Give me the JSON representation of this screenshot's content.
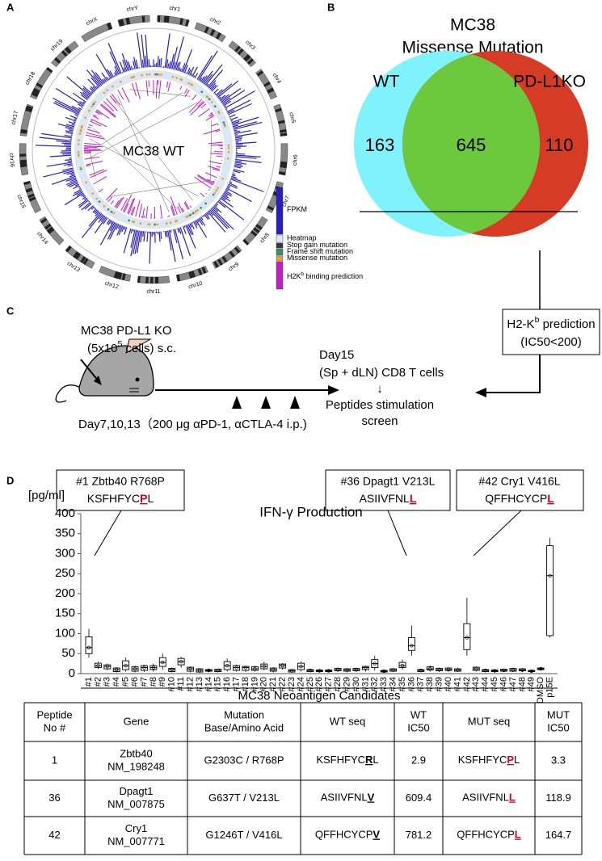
{
  "panel_labels": [
    "A",
    "B",
    "C",
    "D"
  ],
  "panel_a": {
    "center_label": "MC38 WT",
    "chromosomes": [
      "chr1",
      "chr2",
      "chr3",
      "chr4",
      "chr5",
      "chr6",
      "chr7",
      "chr8",
      "chr9",
      "chr10",
      "chr11",
      "chr12",
      "chr13",
      "chr14",
      "chr15",
      "chr16",
      "chr17",
      "chr18",
      "chr19",
      "chrX",
      "chrY"
    ],
    "legend": [
      {
        "parts": [
          "FPKM"
        ],
        "color": "#2a1fb8"
      },
      {
        "parts": [
          "Heatmap"
        ],
        "color": "#dbe7f3"
      },
      {
        "parts": [
          "Stop gain mutation"
        ],
        "color": "#3a3a3a"
      },
      {
        "parts": [
          "Frame shift mutation"
        ],
        "color": "#3c8f6e"
      },
      {
        "parts": [
          "Missense mutation"
        ],
        "color": "#e8a33a"
      },
      {
        "parts": [
          "H2K",
          "b",
          " binding prediction"
        ],
        "color": "#c21fc2"
      }
    ]
  },
  "panel_b": {
    "title": [
      "MC38",
      "Missense Mutation"
    ],
    "sets": [
      {
        "name": "WT",
        "color": "#80f2fb"
      },
      {
        "name": "PD-L1KO",
        "color": "#d63b25"
      }
    ],
    "overlap_color": "#6cc93e",
    "counts": [
      163,
      645,
      110
    ],
    "prediction_box": [
      [
        "H2-K",
        "b",
        " prediction"
      ],
      [
        "(IC50<200)"
      ]
    ]
  },
  "panel_c": {
    "line1": "MC38 PD-L1 KO",
    "line2": [
      "(5x10",
      "5",
      " cells) s.c."
    ],
    "schedule": "Day7,10,13（200 μg αPD-1, αCTLA-4 i.p.)",
    "readout": [
      "Day15",
      "(Sp + dLN) CD8 T cells",
      "↓",
      "Peptides stimulation",
      "screen"
    ]
  },
  "callouts": [
    {
      "title": "#1 Zbtb40 R768P",
      "seq": [
        "KSFHFYC",
        "P",
        "L"
      ]
    },
    {
      "title": "#36 Dpagt1 V213L",
      "seq": [
        "ASIIVFNL",
        "L",
        ""
      ]
    },
    {
      "title": "#42 Cry1 V416L",
      "seq": [
        "QFFHCYCP",
        "L",
        ""
      ]
    }
  ],
  "chart_data": {
    "type": "box",
    "title": "IFN-γ Production",
    "y_label": "[pg/ml]",
    "x_label": "MC38 Neoantigen Candidates",
    "categories": [
      "#1",
      "#2",
      "#3",
      "#4",
      "#5",
      "#6",
      "#7",
      "#8",
      "#9",
      "#10",
      "#11",
      "#12",
      "#13",
      "#14",
      "#15",
      "#16",
      "#17",
      "#18",
      "#19",
      "#20",
      "#21",
      "#22",
      "#23",
      "#24",
      "#25",
      "#26",
      "#27",
      "#28",
      "#29",
      "#30",
      "#31",
      "#32",
      "#33",
      "#34",
      "#35",
      "#36",
      "#37",
      "#38",
      "#39",
      "#40",
      "#41",
      "#42",
      "#43",
      "#44",
      "#45",
      "#46",
      "#47",
      "#48",
      "#49",
      "DMSO",
      "p15E"
    ],
    "min": [
      40,
      12,
      8,
      3,
      5,
      3,
      4,
      5,
      10,
      3,
      15,
      3,
      2,
      4,
      3,
      5,
      5,
      4,
      5,
      8,
      3,
      10,
      2,
      5,
      3,
      3,
      3,
      4,
      3,
      4,
      5,
      8,
      2,
      4,
      10,
      45,
      3,
      5,
      4,
      5,
      4,
      45,
      5,
      3,
      3,
      4,
      4,
      4,
      3,
      8,
      90
    ],
    "q1": [
      50,
      15,
      12,
      5,
      10,
      6,
      8,
      10,
      18,
      5,
      22,
      6,
      4,
      6,
      5,
      10,
      8,
      8,
      8,
      12,
      6,
      14,
      4,
      10,
      5,
      5,
      5,
      7,
      6,
      7,
      10,
      15,
      4,
      6,
      15,
      58,
      5,
      9,
      7,
      8,
      6,
      60,
      8,
      5,
      5,
      6,
      6,
      7,
      5,
      10,
      95
    ],
    "median": [
      65,
      20,
      18,
      10,
      20,
      12,
      15,
      15,
      28,
      10,
      30,
      12,
      8,
      8,
      8,
      20,
      15,
      15,
      12,
      18,
      10,
      20,
      7,
      18,
      8,
      7,
      7,
      10,
      9,
      10,
      15,
      25,
      6,
      9,
      20,
      70,
      8,
      12,
      10,
      10,
      9,
      90,
      12,
      8,
      7,
      8,
      9,
      9,
      6,
      12,
      245
    ],
    "q3": [
      92,
      26,
      22,
      14,
      32,
      17,
      20,
      20,
      40,
      13,
      38,
      16,
      12,
      10,
      11,
      30,
      20,
      18,
      17,
      24,
      14,
      24,
      10,
      26,
      10,
      9,
      9,
      13,
      12,
      13,
      18,
      35,
      8,
      12,
      28,
      90,
      10,
      17,
      13,
      14,
      12,
      125,
      16,
      10,
      9,
      11,
      13,
      12,
      8,
      14,
      320
    ],
    "max": [
      112,
      30,
      25,
      16,
      40,
      20,
      22,
      25,
      50,
      15,
      42,
      18,
      14,
      11,
      12,
      38,
      22,
      20,
      20,
      30,
      16,
      26,
      12,
      30,
      11,
      10,
      10,
      15,
      14,
      15,
      20,
      45,
      10,
      14,
      35,
      120,
      12,
      20,
      15,
      16,
      15,
      190,
      18,
      12,
      10,
      13,
      15,
      14,
      10,
      15,
      340
    ],
    "ylim": [
      0,
      400
    ],
    "yticks": [
      0,
      50,
      100,
      150,
      200,
      250,
      300,
      350,
      400
    ],
    "color": "#000000"
  },
  "table": {
    "header": [
      [
        "Peptide",
        "No #"
      ],
      [
        "Gene"
      ],
      [
        "Mutation",
        "Base/Amino Acid"
      ],
      [
        "WT seq"
      ],
      [
        "WT",
        "IC50"
      ],
      [
        "MUT seq"
      ],
      [
        "MUT",
        "IC50"
      ]
    ],
    "rows": [
      [
        1,
        [
          "Zbtb40",
          "NM_198248"
        ],
        "G2303C / R768P",
        [
          "KSFHFYC",
          "R",
          "L"
        ],
        2.9,
        [
          "KSFHFYC",
          "P",
          "L"
        ],
        3.3
      ],
      [
        36,
        [
          "Dpagt1",
          "NM_007875"
        ],
        "G637T / V213L",
        [
          "ASIIVFNL",
          "V",
          ""
        ],
        609.4,
        [
          "ASIIVFNL",
          "L",
          ""
        ],
        118.9
      ],
      [
        42,
        [
          "Cry1",
          "NM_007771"
        ],
        "G1246T / V416L",
        [
          "QFFHCYCP",
          "V",
          ""
        ],
        781.2,
        [
          "QFFHCYCP",
          "L",
          ""
        ],
        164.7
      ]
    ]
  }
}
